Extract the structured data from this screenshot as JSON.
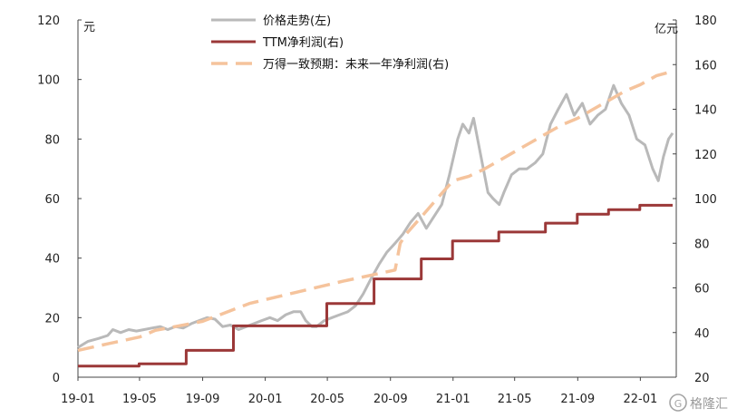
{
  "chart_data": {
    "type": "line",
    "y_left": {
      "unit": "元",
      "lim": [
        0,
        120
      ],
      "ticks": [
        0,
        20,
        40,
        60,
        80,
        100,
        120
      ]
    },
    "y_right": {
      "unit": "亿元",
      "lim": [
        20,
        180
      ],
      "ticks": [
        20,
        40,
        60,
        80,
        100,
        120,
        140,
        160,
        180
      ]
    },
    "x_ticks": [
      "19-01",
      "19-05",
      "19-09",
      "20-01",
      "20-05",
      "20-09",
      "21-01",
      "21-05",
      "21-09",
      "22-01"
    ],
    "x_range": [
      "2019-01",
      "2022-03"
    ],
    "grid": false,
    "legend_position": "top-center",
    "series": [
      {
        "name": "价格走势(左)",
        "axis": "left",
        "style": "solid",
        "color": "#b9b9b9",
        "points": [
          [
            "2019-01-01",
            10
          ],
          [
            "2019-01-20",
            12
          ],
          [
            "2019-02-10",
            13
          ],
          [
            "2019-02-28",
            14
          ],
          [
            "2019-03-10",
            16
          ],
          [
            "2019-03-25",
            15
          ],
          [
            "2019-04-10",
            16
          ],
          [
            "2019-04-25",
            15.5
          ],
          [
            "2019-05-10",
            16
          ],
          [
            "2019-05-25",
            16.5
          ],
          [
            "2019-06-10",
            17
          ],
          [
            "2019-06-25",
            16
          ],
          [
            "2019-07-10",
            17
          ],
          [
            "2019-07-25",
            16.5
          ],
          [
            "2019-08-10",
            18
          ],
          [
            "2019-08-25",
            19
          ],
          [
            "2019-09-10",
            20
          ],
          [
            "2019-09-25",
            19.5
          ],
          [
            "2019-10-10",
            17
          ],
          [
            "2019-10-25",
            17.5
          ],
          [
            "2019-11-10",
            16
          ],
          [
            "2019-11-25",
            17
          ],
          [
            "2019-12-10",
            18
          ],
          [
            "2019-12-25",
            19
          ],
          [
            "2020-01-10",
            20
          ],
          [
            "2020-01-25",
            19
          ],
          [
            "2020-02-10",
            21
          ],
          [
            "2020-02-25",
            22
          ],
          [
            "2020-03-10",
            22
          ],
          [
            "2020-03-20",
            19
          ],
          [
            "2020-04-01",
            17
          ],
          [
            "2020-04-10",
            17
          ],
          [
            "2020-04-25",
            19
          ],
          [
            "2020-05-10",
            20
          ],
          [
            "2020-05-25",
            21
          ],
          [
            "2020-06-10",
            22
          ],
          [
            "2020-06-25",
            24
          ],
          [
            "2020-07-10",
            28
          ],
          [
            "2020-07-25",
            33
          ],
          [
            "2020-08-10",
            38
          ],
          [
            "2020-08-25",
            42
          ],
          [
            "2020-09-10",
            45
          ],
          [
            "2020-09-25",
            48
          ],
          [
            "2020-10-10",
            52
          ],
          [
            "2020-10-25",
            55
          ],
          [
            "2020-11-10",
            50
          ],
          [
            "2020-11-25",
            54
          ],
          [
            "2020-12-10",
            58
          ],
          [
            "2020-12-25",
            68
          ],
          [
            "2021-01-10",
            80
          ],
          [
            "2021-01-20",
            85
          ],
          [
            "2021-02-01",
            82
          ],
          [
            "2021-02-10",
            87
          ],
          [
            "2021-02-20",
            78
          ],
          [
            "2021-03-01",
            70
          ],
          [
            "2021-03-10",
            62
          ],
          [
            "2021-03-20",
            60
          ],
          [
            "2021-04-01",
            58
          ],
          [
            "2021-04-10",
            62
          ],
          [
            "2021-04-25",
            68
          ],
          [
            "2021-05-10",
            70
          ],
          [
            "2021-05-25",
            70
          ],
          [
            "2021-06-10",
            72
          ],
          [
            "2021-06-25",
            75
          ],
          [
            "2021-07-10",
            85
          ],
          [
            "2021-07-25",
            90
          ],
          [
            "2021-08-10",
            95
          ],
          [
            "2021-08-25",
            88
          ],
          [
            "2021-09-10",
            92
          ],
          [
            "2021-09-25",
            85
          ],
          [
            "2021-10-10",
            88
          ],
          [
            "2021-10-25",
            90
          ],
          [
            "2021-11-10",
            98
          ],
          [
            "2021-11-25",
            92
          ],
          [
            "2021-12-10",
            88
          ],
          [
            "2021-12-25",
            80
          ],
          [
            "2022-01-10",
            78
          ],
          [
            "2022-01-25",
            70
          ],
          [
            "2022-02-05",
            66
          ],
          [
            "2022-02-15",
            74
          ],
          [
            "2022-02-25",
            80
          ],
          [
            "2022-03-05",
            82
          ]
        ]
      },
      {
        "name": "TTM净利润(右)",
        "axis": "right",
        "style": "step",
        "color": "#9b3838",
        "points": [
          [
            "2019-01-01",
            25
          ],
          [
            "2019-04-30",
            26
          ],
          [
            "2019-07-31",
            32
          ],
          [
            "2019-10-31",
            43
          ],
          [
            "2020-01-01",
            43
          ],
          [
            "2020-04-30",
            53
          ],
          [
            "2020-07-31",
            64
          ],
          [
            "2020-10-31",
            73
          ],
          [
            "2020-12-31",
            81
          ],
          [
            "2021-03-31",
            85
          ],
          [
            "2021-06-30",
            89
          ],
          [
            "2021-08-31",
            93
          ],
          [
            "2021-10-31",
            95
          ],
          [
            "2021-12-31",
            97
          ],
          [
            "2022-03-05",
            97
          ]
        ]
      },
      {
        "name": "万得一致预期：未来一年净利润(右)",
        "axis": "right",
        "style": "dashed",
        "color": "#f5c39c",
        "points": [
          [
            "2019-01-01",
            32
          ],
          [
            "2019-03-01",
            35
          ],
          [
            "2019-05-01",
            38
          ],
          [
            "2019-06-01",
            41
          ],
          [
            "2019-09-01",
            45
          ],
          [
            "2019-12-01",
            53
          ],
          [
            "2020-03-01",
            58
          ],
          [
            "2020-06-01",
            63
          ],
          [
            "2020-08-01",
            66
          ],
          [
            "2020-09-10",
            68
          ],
          [
            "2020-09-20",
            80
          ],
          [
            "2020-10-01",
            84
          ],
          [
            "2020-11-01",
            92
          ],
          [
            "2020-12-01",
            100
          ],
          [
            "2021-01-01",
            108
          ],
          [
            "2021-02-01",
            110
          ],
          [
            "2021-03-01",
            113
          ],
          [
            "2021-04-01",
            117
          ],
          [
            "2021-05-01",
            121
          ],
          [
            "2021-06-01",
            125
          ],
          [
            "2021-07-01",
            129
          ],
          [
            "2021-08-01",
            133
          ],
          [
            "2021-09-01",
            136
          ],
          [
            "2021-10-01",
            140
          ],
          [
            "2021-11-01",
            144
          ],
          [
            "2021-12-01",
            148
          ],
          [
            "2022-01-01",
            151
          ],
          [
            "2022-02-01",
            155
          ],
          [
            "2022-03-05",
            157
          ]
        ]
      }
    ]
  },
  "watermark": {
    "text": "格隆汇",
    "glyph": "G"
  }
}
